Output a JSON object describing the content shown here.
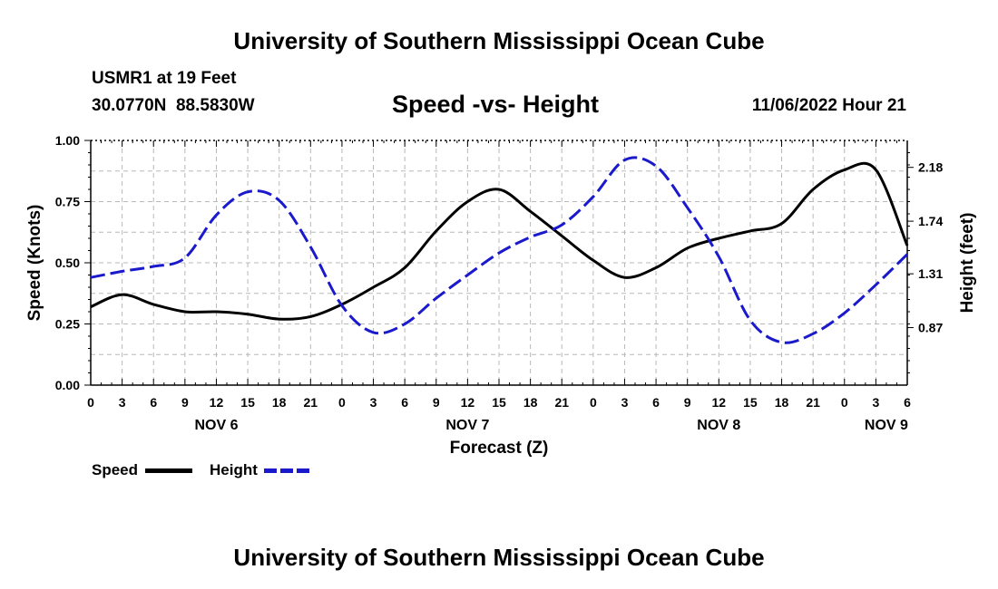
{
  "page": {
    "title": "University of Southern Mississippi Ocean Cube",
    "station": "USMR1 at 19 Feet",
    "coords": "30.0770N  88.5830W",
    "subtitle": "Speed -vs- Height",
    "datetime": "11/06/2022 Hour 21",
    "footer_title": "University of Southern Mississippi Ocean Cube"
  },
  "chart_data": {
    "type": "line",
    "title": "Speed -vs- Height",
    "xlabel": "Forecast (Z)",
    "ylabel": "Speed (Knots)",
    "y2label": "Height (feet)",
    "x_unit": "hours from 11/06 00Z",
    "xlim": [
      0,
      78
    ],
    "ylim": [
      0,
      1.0
    ],
    "y2lim": [
      0.4,
      2.4
    ],
    "x_ticks": [
      0,
      3,
      6,
      9,
      12,
      15,
      18,
      21,
      24,
      27,
      30,
      33,
      36,
      39,
      42,
      45,
      48,
      51,
      54,
      57,
      60,
      63,
      66,
      69,
      72,
      75,
      78
    ],
    "x_tick_labels": [
      "0",
      "3",
      "6",
      "9",
      "12",
      "15",
      "18",
      "21",
      "0",
      "3",
      "6",
      "9",
      "12",
      "15",
      "18",
      "21",
      "0",
      "3",
      "6",
      "9",
      "12",
      "15",
      "18",
      "21",
      "0",
      "3",
      "6"
    ],
    "day_labels": [
      {
        "x": 12,
        "label": "NOV 6"
      },
      {
        "x": 36,
        "label": "NOV 7"
      },
      {
        "x": 60,
        "label": "NOV 8"
      },
      {
        "x": 76,
        "label": "NOV 9"
      }
    ],
    "y_ticks": [
      0,
      0.25,
      0.5,
      0.75,
      1.0
    ],
    "y_tick_labels": [
      "0.00",
      "0.25",
      "0.50",
      "0.75",
      "1.00"
    ],
    "y2_ticks": [
      0.87,
      1.31,
      1.74,
      2.18
    ],
    "y2_tick_labels": [
      "0.87",
      "1.31",
      "1.74",
      "2.18"
    ],
    "grid": true,
    "legend": [
      {
        "name": "Speed",
        "color": "#000000",
        "dash": "solid"
      },
      {
        "name": "Height",
        "color": "#1a1acc",
        "dash": "dashed"
      }
    ],
    "series": [
      {
        "name": "Speed",
        "axis": "left",
        "color": "#000000",
        "x": [
          0,
          3,
          6,
          9,
          12,
          15,
          18,
          21,
          24,
          27,
          30,
          33,
          36,
          39,
          42,
          45,
          48,
          51,
          54,
          57,
          60,
          63,
          66,
          69,
          72,
          75,
          78
        ],
        "values": [
          0.32,
          0.37,
          0.33,
          0.3,
          0.3,
          0.29,
          0.27,
          0.28,
          0.33,
          0.4,
          0.48,
          0.63,
          0.75,
          0.8,
          0.71,
          0.61,
          0.51,
          0.44,
          0.48,
          0.56,
          0.6,
          0.63,
          0.66,
          0.8,
          0.88,
          0.88,
          0.57
        ]
      },
      {
        "name": "Height",
        "axis": "right",
        "color": "#1a1acc",
        "x": [
          0,
          3,
          6,
          9,
          12,
          15,
          18,
          21,
          24,
          27,
          30,
          33,
          36,
          39,
          42,
          45,
          48,
          51,
          54,
          57,
          60,
          63,
          66,
          69,
          72,
          75,
          78
        ],
        "values": [
          1.28,
          1.33,
          1.37,
          1.44,
          1.79,
          1.98,
          1.91,
          1.53,
          1.05,
          0.83,
          0.9,
          1.11,
          1.3,
          1.48,
          1.61,
          1.71,
          1.94,
          2.24,
          2.19,
          1.85,
          1.45,
          0.93,
          0.75,
          0.82,
          0.99,
          1.22,
          1.47
        ]
      }
    ]
  }
}
